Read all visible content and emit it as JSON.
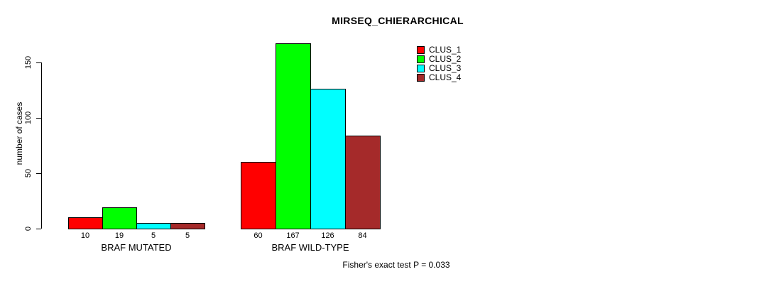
{
  "title": "MIRSEQ_CHIERARCHICAL",
  "footnote": "Fisher's exact test P = 0.033",
  "colors": {
    "background": "#ffffff",
    "axis": "#000000",
    "bar_border": "#000000"
  },
  "chart_data": {
    "type": "bar",
    "title": "MIRSEQ_CHIERARCHICAL",
    "xlabel": "",
    "ylabel": "number of cases",
    "ylim": [
      0,
      170
    ],
    "yticks": [
      0,
      50,
      100,
      150
    ],
    "grid": false,
    "legend_position": "top-right",
    "categories": [
      "BRAF MUTATED",
      "BRAF WILD-TYPE"
    ],
    "series": [
      {
        "name": "CLUS_1",
        "color": "#ff0000",
        "values": [
          10,
          60
        ]
      },
      {
        "name": "CLUS_2",
        "color": "#00ff00",
        "values": [
          19,
          167
        ]
      },
      {
        "name": "CLUS_3",
        "color": "#00ffff",
        "values": [
          5,
          126
        ]
      },
      {
        "name": "CLUS_4",
        "color": "#a52a2a",
        "values": [
          5,
          84
        ]
      }
    ],
    "bar_value_labels": [
      [
        "10",
        "19",
        "5",
        "5"
      ],
      [
        "60",
        "167",
        "126",
        "84"
      ]
    ],
    "annotation": "Fisher's exact test P = 0.033"
  }
}
